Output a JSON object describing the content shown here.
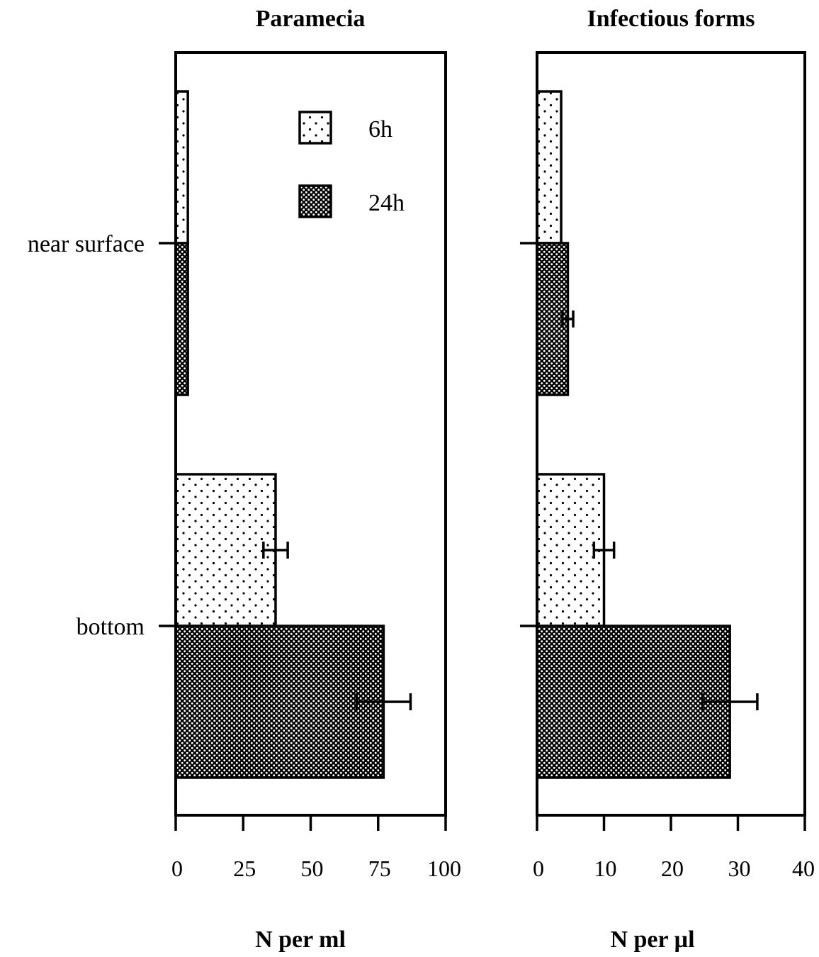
{
  "chart_data": [
    {
      "type": "bar",
      "orientation": "horizontal",
      "title": "Paramecia",
      "xlabel": "N per ml",
      "ylabel": "",
      "xlim": [
        0,
        100
      ],
      "xticks": [
        "0",
        "25",
        "50",
        "75",
        "100"
      ],
      "categories": [
        "near surface",
        "bottom"
      ],
      "series": [
        {
          "name": "6h",
          "pattern": "sparse-dots",
          "values": [
            4.5,
            37
          ],
          "errors": [
            null,
            4.5
          ]
        },
        {
          "name": "24h",
          "pattern": "dense-dots",
          "values": [
            4.5,
            77
          ],
          "errors": [
            null,
            10
          ]
        }
      ],
      "legend": {
        "placement": "top-right",
        "entries": [
          "6h",
          "24h"
        ]
      }
    },
    {
      "type": "bar",
      "orientation": "horizontal",
      "title": "Infectious forms",
      "xlabel": "N per µl",
      "ylabel": "",
      "xlim": [
        0,
        40
      ],
      "xticks": [
        "0",
        "10",
        "20",
        "30",
        "40"
      ],
      "categories": [
        "near surface",
        "bottom"
      ],
      "series": [
        {
          "name": "6h",
          "pattern": "sparse-dots",
          "values": [
            3.6,
            10
          ],
          "errors": [
            null,
            1.5
          ]
        },
        {
          "name": "24h",
          "pattern": "dense-dots",
          "values": [
            4.6,
            28.8
          ],
          "errors": [
            0.8,
            4.1
          ]
        }
      ]
    }
  ]
}
